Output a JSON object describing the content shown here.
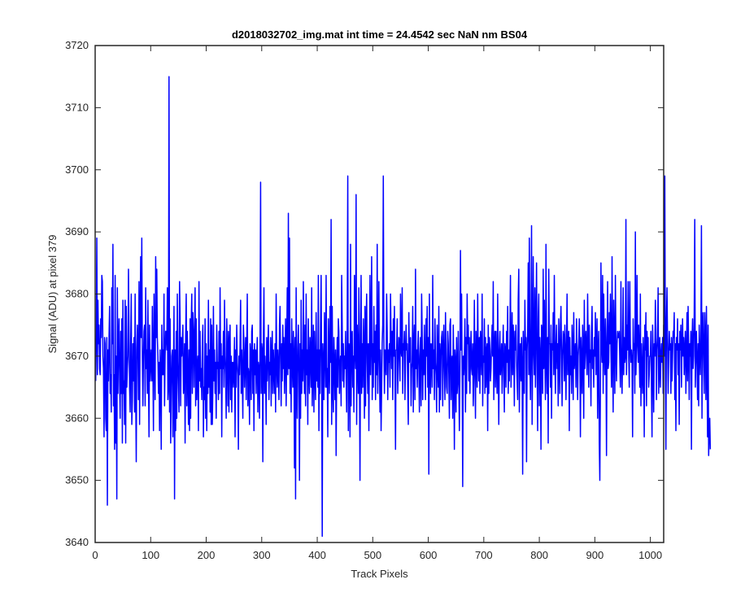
{
  "chart_data": {
    "type": "line",
    "title": "d2018032702_img.mat int time = 24.4542 sec  NaN nm BS04",
    "xlabel": "Track Pixels",
    "ylabel": "Signal (ADU) at pixel 379",
    "xlim": [
      0,
      1024
    ],
    "ylim": [
      3640,
      3720
    ],
    "xticks": [
      0,
      100,
      200,
      300,
      400,
      500,
      600,
      700,
      800,
      900,
      1000
    ],
    "yticks": [
      3640,
      3650,
      3660,
      3670,
      3680,
      3690,
      3700,
      3710,
      3720
    ],
    "grid": false,
    "legend": "none",
    "colors": {
      "series": "#0000ff",
      "axes": "#262626",
      "background": "#ffffff"
    },
    "series": [
      {
        "x_start": 1,
        "x_step": 1,
        "values": [
          3666,
          3674,
          3689,
          3667,
          3679,
          3672,
          3675,
          3668,
          3667,
          3676,
          3673,
          3683,
          3682,
          3670,
          3668,
          3657,
          3673,
          3672,
          3660,
          3658,
          3673,
          3646,
          3671,
          3666,
          3673,
          3678,
          3664,
          3667,
          3661,
          3681,
          3672,
          3688,
          3662,
          3667,
          3655,
          3683,
          3656,
          3670,
          3647,
          3681,
          3664,
          3672,
          3676,
          3666,
          3660,
          3674,
          3664,
          3676,
          3656,
          3679,
          3664,
          3666,
          3659,
          3679,
          3656,
          3678,
          3665,
          3668,
          3670,
          3684,
          3674,
          3665,
          3661,
          3672,
          3680,
          3659,
          3663,
          3672,
          3666,
          3673,
          3661,
          3680,
          3664,
          3653,
          3671,
          3675,
          3671,
          3663,
          3682,
          3659,
          3676,
          3686,
          3673,
          3689,
          3670,
          3662,
          3670,
          3674,
          3675,
          3662,
          3681,
          3668,
          3671,
          3664,
          3679,
          3667,
          3657,
          3675,
          3666,
          3669,
          3671,
          3666,
          3678,
          3669,
          3658,
          3680,
          3671,
          3663,
          3686,
          3673,
          3684,
          3673,
          3670,
          3664,
          3669,
          3658,
          3671,
          3667,
          3655,
          3675,
          3667,
          3671,
          3667,
          3680,
          3662,
          3670,
          3674,
          3674,
          3671,
          3681,
          3663,
          3665,
          3715,
          3661,
          3676,
          3656,
          3665,
          3670,
          3671,
          3657,
          3666,
          3678,
          3647,
          3671,
          3658,
          3674,
          3660,
          3680,
          3669,
          3665,
          3661,
          3682,
          3676,
          3662,
          3673,
          3670,
          3672,
          3675,
          3664,
          3667,
          3672,
          3656,
          3673,
          3680,
          3662,
          3674,
          3667,
          3659,
          3671,
          3658,
          3676,
          3660,
          3675,
          3680,
          3664,
          3677,
          3674,
          3665,
          3673,
          3681,
          3662,
          3676,
          3663,
          3668,
          3670,
          3658,
          3682,
          3666,
          3674,
          3665,
          3668,
          3663,
          3672,
          3675,
          3657,
          3665,
          3663,
          3676,
          3660,
          3672,
          3658,
          3670,
          3664,
          3679,
          3665,
          3671,
          3661,
          3676,
          3659,
          3675,
          3659,
          3665,
          3678,
          3666,
          3671,
          3664,
          3669,
          3660,
          3675,
          3668,
          3669,
          3663,
          3674,
          3664,
          3681,
          3668,
          3672,
          3657,
          3670,
          3668,
          3674,
          3665,
          3679,
          3670,
          3667,
          3660,
          3676,
          3670,
          3662,
          3674,
          3661,
          3672,
          3675,
          3663,
          3670,
          3661,
          3669,
          3669,
          3665,
          3668,
          3673,
          3657,
          3671,
          3665,
          3675,
          3669,
          3667,
          3655,
          3670,
          3667,
          3672,
          3679,
          3664,
          3671,
          3667,
          3660,
          3675,
          3672,
          3665,
          3669,
          3673,
          3663,
          3671,
          3680,
          3662,
          3668,
          3667,
          3659,
          3672,
          3670,
          3663,
          3674,
          3675,
          3664,
          3671,
          3658,
          3672,
          3667,
          3671,
          3664,
          3670,
          3673,
          3661,
          3669,
          3668,
          3660,
          3673,
          3698,
          3664,
          3672,
          3671,
          3653,
          3672,
          3681,
          3664,
          3670,
          3667,
          3659,
          3673,
          3666,
          3671,
          3675,
          3663,
          3669,
          3667,
          3673,
          3662,
          3670,
          3674,
          3664,
          3671,
          3668,
          3664,
          3672,
          3661,
          3680,
          3669,
          3665,
          3671,
          3668,
          3663,
          3675,
          3678,
          3669,
          3662,
          3672,
          3666,
          3675,
          3668,
          3673,
          3664,
          3670,
          3676,
          3662,
          3671,
          3681,
          3667,
          3693,
          3668,
          3689,
          3664,
          3672,
          3661,
          3676,
          3669,
          3665,
          3674,
          3670,
          3652,
          3673,
          3647,
          3681,
          3666,
          3660,
          3671,
          3675,
          3667,
          3650,
          3672,
          3660,
          3679,
          3664,
          3671,
          3666,
          3682,
          3670,
          3664,
          3675,
          3662,
          3680,
          3667,
          3671,
          3659,
          3676,
          3668,
          3664,
          3673,
          3670,
          3665,
          3681,
          3662,
          3668,
          3675,
          3661,
          3674,
          3667,
          3663,
          3677,
          3666,
          3671,
          3665,
          3683,
          3658,
          3671,
          3664,
          3675,
          3683,
          3666,
          3641,
          3672,
          3668,
          3663,
          3677,
          3671,
          3665,
          3683,
          3665,
          3668,
          3657,
          3676,
          3670,
          3664,
          3678,
          3669,
          3692,
          3659,
          3678,
          3665,
          3661,
          3673,
          3669,
          3663,
          3671,
          3654,
          3668,
          3673,
          3665,
          3676,
          3674,
          3664,
          3668,
          3670,
          3662,
          3683,
          3675,
          3666,
          3672,
          3665,
          3670,
          3668,
          3674,
          3667,
          3661,
          3675,
          3699,
          3658,
          3672,
          3671,
          3657,
          3688,
          3662,
          3673,
          3674,
          3665,
          3670,
          3661,
          3683,
          3671,
          3668,
          3696,
          3659,
          3675,
          3670,
          3664,
          3681,
          3668,
          3650,
          3673,
          3683,
          3664,
          3672,
          3665,
          3676,
          3671,
          3660,
          3678,
          3662,
          3675,
          3680,
          3669,
          3664,
          3672,
          3658,
          3671,
          3683,
          3667,
          3673,
          3686,
          3663,
          3672,
          3665,
          3678,
          3669,
          3674,
          3663,
          3675,
          3667,
          3688,
          3664,
          3671,
          3682,
          3669,
          3661,
          3671,
          3658,
          3665,
          3672,
          3675,
          3699,
          3673,
          3664,
          3671,
          3670,
          3667,
          3680,
          3674,
          3663,
          3671,
          3669,
          3672,
          3665,
          3680,
          3673,
          3668,
          3674,
          3663,
          3676,
          3670,
          3678,
          3667,
          3655,
          3671,
          3671,
          3676,
          3664,
          3669,
          3673,
          3672,
          3666,
          3680,
          3671,
          3670,
          3681,
          3664,
          3672,
          3671,
          3674,
          3663,
          3670,
          3675,
          3671,
          3672,
          3665,
          3659,
          3677,
          3669,
          3672,
          3673,
          3662,
          3668,
          3669,
          3678,
          3661,
          3672,
          3675,
          3663,
          3684,
          3668,
          3671,
          3665,
          3671,
          3674,
          3668,
          3661,
          3670,
          3673,
          3662,
          3680,
          3674,
          3663,
          3671,
          3667,
          3675,
          3669,
          3663,
          3676,
          3670,
          3678,
          3665,
          3673,
          3651,
          3680,
          3669,
          3664,
          3672,
          3671,
          3665,
          3683,
          3668,
          3671,
          3663,
          3676,
          3669,
          3667,
          3661,
          3675,
          3668,
          3665,
          3678,
          3661,
          3672,
          3663,
          3670,
          3673,
          3674,
          3662,
          3671,
          3675,
          3668,
          3663,
          3677,
          3670,
          3665,
          3664,
          3674,
          3672,
          3667,
          3660,
          3675,
          3676,
          3663,
          3669,
          3670,
          3660,
          3675,
          3668,
          3655,
          3671,
          3669,
          3661,
          3673,
          3664,
          3666,
          3674,
          3665,
          3658,
          3668,
          3687,
          3671,
          3680,
          3667,
          3649,
          3670,
          3667,
          3670,
          3676,
          3661,
          3673,
          3664,
          3680,
          3672,
          3675,
          3666,
          3673,
          3664,
          3670,
          3674,
          3668,
          3667,
          3672,
          3662,
          3667,
          3679,
          3668,
          3660,
          3674,
          3671,
          3665,
          3680,
          3670,
          3666,
          3673,
          3664,
          3674,
          3671,
          3667,
          3680,
          3662,
          3670,
          3669,
          3676,
          3664,
          3673,
          3665,
          3671,
          3672,
          3658,
          3675,
          3664,
          3673,
          3671,
          3666,
          3668,
          3672,
          3675,
          3670,
          3682,
          3663,
          3671,
          3674,
          3665,
          3674,
          3668,
          3664,
          3680,
          3669,
          3659,
          3671,
          3674,
          3667,
          3669,
          3672,
          3664,
          3670,
          3675,
          3668,
          3661,
          3672,
          3671,
          3665,
          3674,
          3669,
          3678,
          3664,
          3671,
          3666,
          3673,
          3683,
          3665,
          3670,
          3677,
          3667,
          3675,
          3672,
          3662,
          3674,
          3671,
          3675,
          3669,
          3666,
          3663,
          3679,
          3684,
          3661,
          3670,
          3672,
          3666,
          3673,
          3668,
          3651,
          3674,
          3669,
          3664,
          3679,
          3671,
          3673,
          3653,
          3671,
          3674,
          3685,
          3667,
          3689,
          3670,
          3663,
          3674,
          3691,
          3659,
          3670,
          3686,
          3671,
          3667,
          3681,
          3665,
          3675,
          3685,
          3668,
          3658,
          3676,
          3680,
          3662,
          3673,
          3670,
          3655,
          3675,
          3674,
          3664,
          3684,
          3668,
          3679,
          3670,
          3663,
          3688,
          3669,
          3664,
          3673,
          3656,
          3684,
          3672,
          3672,
          3665,
          3675,
          3660,
          3672,
          3671,
          3677,
          3667,
          3683,
          3670,
          3664,
          3672,
          3675,
          3668,
          3672,
          3662,
          3676,
          3670,
          3664,
          3675,
          3678,
          3671,
          3662,
          3670,
          3674,
          3673,
          3666,
          3675,
          3671,
          3663,
          3672,
          3680,
          3667,
          3671,
          3674,
          3658,
          3673,
          3667,
          3670,
          3664,
          3675,
          3671,
          3663,
          3677,
          3668,
          3670,
          3672,
          3665,
          3676,
          3671,
          3663,
          3670,
          3672,
          3676,
          3671,
          3657,
          3673,
          3669,
          3664,
          3675,
          3671,
          3660,
          3679,
          3668,
          3672,
          3674,
          3670,
          3667,
          3680,
          3672,
          3665,
          3675,
          3669,
          3671,
          3662,
          3674,
          3678,
          3668,
          3671,
          3665,
          3673,
          3670,
          3677,
          3667,
          3672,
          3676,
          3660,
          3671,
          3674,
          3656,
          3650,
          3664,
          3685,
          3672,
          3669,
          3683,
          3664,
          3680,
          3671,
          3667,
          3676,
          3671,
          3654,
          3673,
          3682,
          3668,
          3669,
          3677,
          3672,
          3680,
          3671,
          3665,
          3686,
          3670,
          3661,
          3679,
          3673,
          3664,
          3683,
          3671,
          3666,
          3672,
          3674,
          3673,
          3673,
          3674,
          3669,
          3665,
          3682,
          3670,
          3664,
          3670,
          3681,
          3667,
          3673,
          3669,
          3670,
          3692,
          3667,
          3675,
          3671,
          3682,
          3670,
          3665,
          3682,
          3672,
          3669,
          3671,
          3669,
          3657,
          3676,
          3671,
          3672,
          3664,
          3690,
          3667,
          3672,
          3683,
          3672,
          3669,
          3675,
          3670,
          3665,
          3680,
          3662,
          3672,
          3667,
          3664,
          3673,
          3670,
          3657,
          3675,
          3671,
          3677,
          3662,
          3674,
          3670,
          3673,
          3665,
          3667,
          3670,
          3670,
          3674,
          3665,
          3657,
          3675,
          3670,
          3661,
          3672,
          3670,
          3679,
          3674,
          3663,
          3671,
          3673,
          3681,
          3664,
          3668,
          3673,
          3665,
          3670,
          3672,
          3669,
          3673,
          3664,
          3675,
          3670,
          3699,
          3670,
          3655,
          3676,
          3681,
          3672,
          3664,
          3670,
          3674,
          3671,
          3672,
          3664,
          3673,
          3666,
          3670,
          3674,
          3673,
          3677,
          3663,
          3672,
          3658,
          3673,
          3671,
          3676,
          3667,
          3672,
          3659,
          3674,
          3671,
          3675,
          3665,
          3672,
          3676,
          3670,
          3673,
          3667,
          3671,
          3674,
          3664,
          3670,
          3677,
          3666,
          3678,
          3671,
          3663,
          3672,
          3670,
          3674,
          3655,
          3672,
          3676,
          3668,
          3670,
          3677,
          3692,
          3665,
          3670,
          3674,
          3669,
          3663,
          3672,
          3662,
          3675,
          3671,
          3667,
          3673,
          3691,
          3660,
          3674,
          3677,
          3670,
          3664,
          3677,
          3673,
          3663,
          3678,
          3669,
          3657,
          3675,
          3654,
          3658,
          3660,
          3655
        ]
      }
    ]
  }
}
